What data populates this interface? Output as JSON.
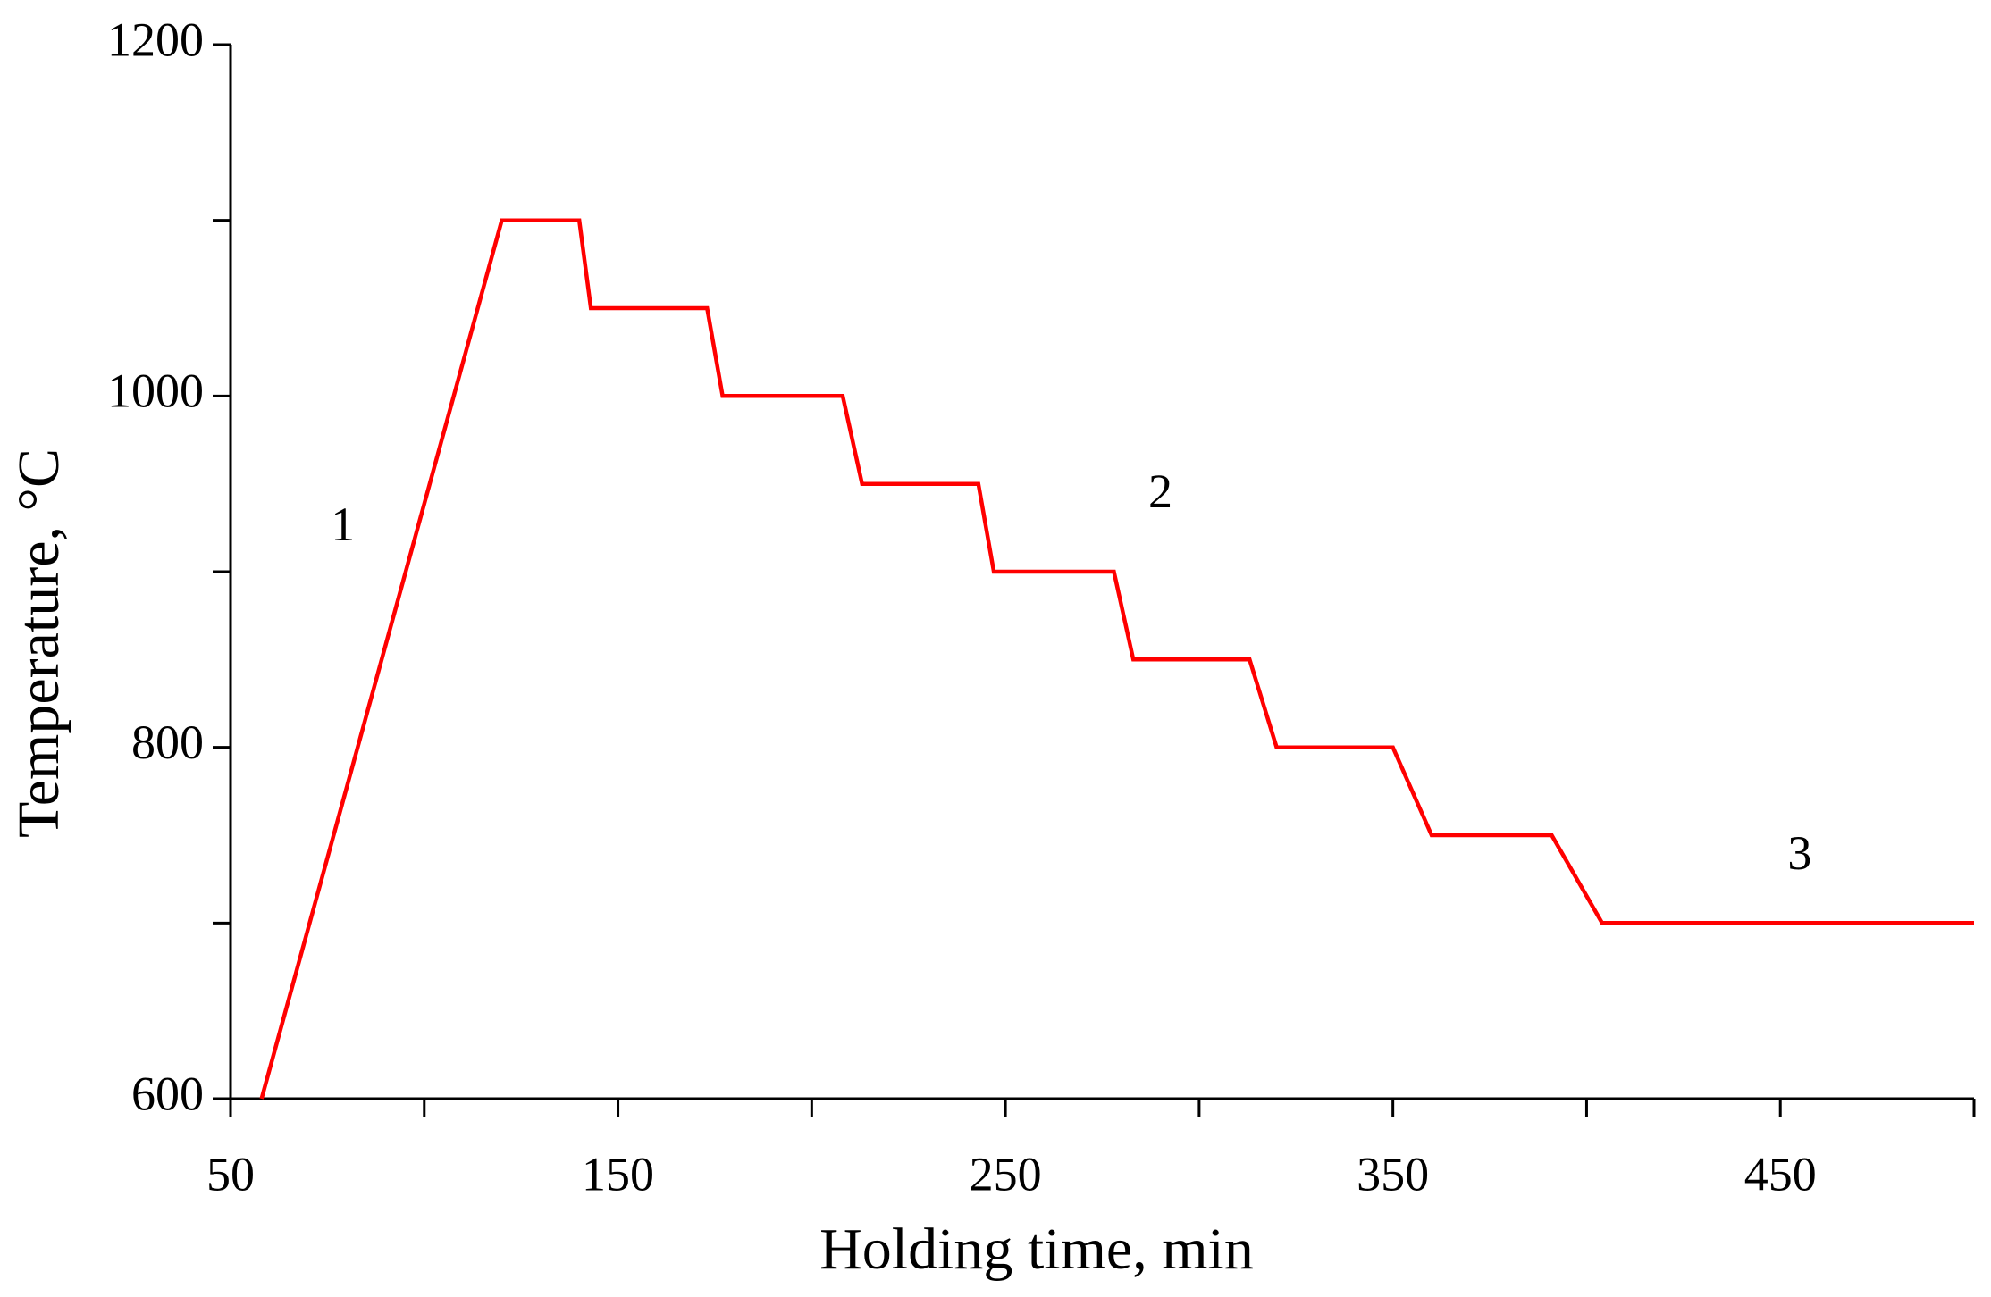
{
  "chart_data": {
    "type": "line",
    "x_label": "Holding time, min",
    "y_label": "Temperature, °C",
    "x": [
      58,
      120,
      140,
      143,
      173,
      177,
      208,
      213,
      243,
      247,
      278,
      283,
      313,
      320,
      350,
      360,
      391,
      404,
      500
    ],
    "series": [
      {
        "color": "#ff0000",
        "values": [
          600,
          1100,
          1100,
          1050,
          1050,
          1000,
          1000,
          950,
          950,
          900,
          900,
          850,
          850,
          800,
          800,
          750,
          750,
          700,
          700
        ]
      }
    ],
    "xlim": [
      50,
      500
    ],
    "ylim": [
      600,
      1200
    ],
    "xticks": [
      50,
      150,
      250,
      350,
      450
    ],
    "xminor_ticks": [
      100,
      200,
      300,
      400,
      500
    ],
    "yticks": [
      600,
      800,
      1000,
      1200
    ],
    "yminor_ticks": [
      700,
      900,
      1100
    ],
    "grid": false,
    "annotations": [
      {
        "text": "1",
        "x": 79,
        "y": 924
      },
      {
        "text": "2",
        "x": 290,
        "y": 943
      },
      {
        "text": "3",
        "x": 455,
        "y": 737
      }
    ]
  }
}
